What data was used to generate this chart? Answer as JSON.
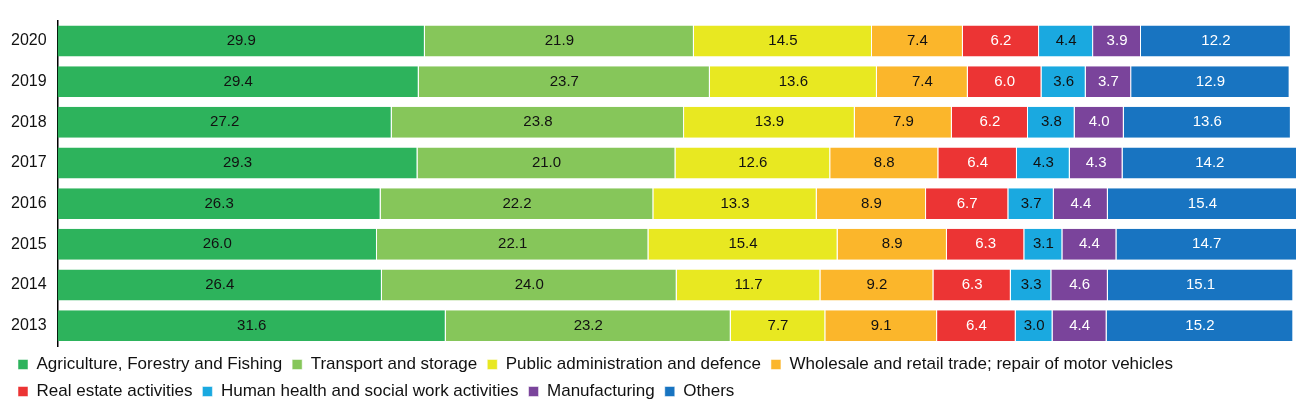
{
  "chart_data": {
    "type": "bar",
    "orientation": "horizontal",
    "stacked": true,
    "tick_labels": "y",
    "legend": "bottom",
    "categories": [
      "2020",
      "2019",
      "2018",
      "2017",
      "2016",
      "2015",
      "2014",
      "2013"
    ],
    "series": [
      {
        "name": "Agriculture, Forestry and Fishing",
        "color": "#2db35c",
        "values": [
          29.9,
          29.4,
          27.2,
          29.3,
          26.3,
          26.0,
          26.4,
          31.6
        ],
        "value_labels": [
          "29.9",
          "29.4",
          "27.2",
          "29.3",
          "26.3",
          "26.0",
          "26.4",
          "31.6"
        ]
      },
      {
        "name": "Transport and storage",
        "color": "#86c65a",
        "values": [
          21.9,
          23.7,
          23.8,
          21.0,
          22.2,
          22.1,
          24.0,
          23.2
        ],
        "value_labels": [
          "21.9",
          "23.7",
          "23.8",
          "21.0",
          "22.2",
          "22.1",
          "24.0",
          "23.2"
        ]
      },
      {
        "name": "Public administration and defence",
        "color": "#e8e821",
        "values": [
          14.5,
          13.6,
          13.9,
          12.6,
          13.3,
          15.4,
          11.7,
          7.7
        ],
        "value_labels": [
          "14.5",
          "13.6",
          "13.9",
          "12.6",
          "13.3",
          "15.4",
          "11.7",
          "7.7"
        ]
      },
      {
        "name": "Wholesale and retail trade; repair of motor vehicles",
        "color": "#fbb62b",
        "values": [
          7.4,
          7.4,
          7.9,
          8.8,
          8.9,
          8.9,
          9.2,
          9.1
        ],
        "value_labels": [
          "7.4",
          "7.4",
          "7.9",
          "8.8",
          "8.9",
          "8.9",
          "9.2",
          "9.1"
        ]
      },
      {
        "name": "Real estate activities",
        "color": "#ec3434",
        "values": [
          6.2,
          6.0,
          6.2,
          6.4,
          6.7,
          6.3,
          6.3,
          6.4
        ],
        "value_labels": [
          "6.2",
          "6.0",
          "6.2",
          "6.4",
          "6.7",
          "6.3",
          "6.3",
          "6.4"
        ]
      },
      {
        "name": "Human health and social work activities",
        "color": "#1aa9e0",
        "values": [
          4.4,
          3.6,
          3.8,
          4.3,
          3.7,
          3.1,
          3.3,
          3.0
        ],
        "value_labels": [
          "4.4",
          "3.6",
          "3.8",
          "4.3",
          "3.7",
          "3.1",
          "3.3",
          "3.0"
        ]
      },
      {
        "name": "Manufacturing",
        "color": "#7a449b",
        "values": [
          3.9,
          3.7,
          4.0,
          4.3,
          4.4,
          4.4,
          4.6,
          4.4
        ],
        "value_labels": [
          "3.9",
          "3.7",
          "4.0",
          "4.3",
          "4.4",
          "4.4",
          "4.6",
          "4.4"
        ]
      },
      {
        "name": "Others",
        "color": "#1874c1",
        "values": [
          12.2,
          12.9,
          13.6,
          14.2,
          15.4,
          14.7,
          15.1,
          15.2
        ],
        "value_labels": [
          "12.2",
          "12.9",
          "13.6",
          "14.2",
          "15.4",
          "14.7",
          "15.1",
          "15.2"
        ]
      }
    ]
  }
}
